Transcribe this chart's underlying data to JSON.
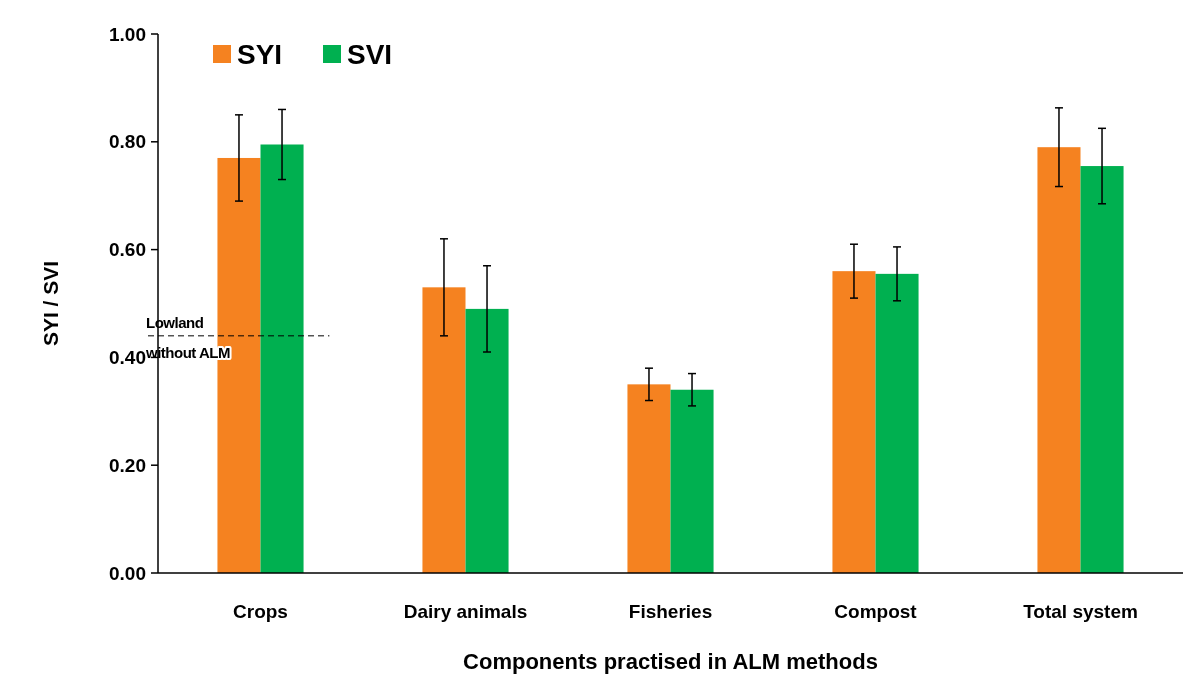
{
  "chart_data": {
    "type": "bar",
    "xlabel": "Components practised in ALM methods",
    "ylabel": "SYI / SVI",
    "categories": [
      "Crops",
      "Dairy animals",
      "Fisheries",
      "Compost",
      "Total system"
    ],
    "series": [
      {
        "name": "SYI",
        "color": "#f58220",
        "values": [
          0.77,
          0.53,
          0.35,
          0.56,
          0.79
        ],
        "errors": [
          0.08,
          0.09,
          0.03,
          0.05,
          0.073
        ]
      },
      {
        "name": "SVI",
        "color": "#00b050",
        "values": [
          0.795,
          0.49,
          0.34,
          0.555,
          0.755
        ],
        "errors": [
          0.065,
          0.08,
          0.03,
          0.05,
          0.07
        ]
      }
    ],
    "ylim": [
      0,
      1
    ],
    "yticks": [
      {
        "value": 0,
        "label": "0.00"
      },
      {
        "value": 0.2,
        "label": "0.20"
      },
      {
        "value": 0.4,
        "label": "0.40"
      },
      {
        "value": 0.6,
        "label": "0.60"
      },
      {
        "value": 0.8,
        "label": "0.80"
      },
      {
        "value": 1,
        "label": "1.00"
      }
    ],
    "ref_lines": [
      {
        "axis": "y",
        "value": 0.44,
        "label": "Lowland without ALM",
        "line_style": "dashed",
        "color": "#000000"
      }
    ],
    "legend": "top left",
    "grid": false
  }
}
